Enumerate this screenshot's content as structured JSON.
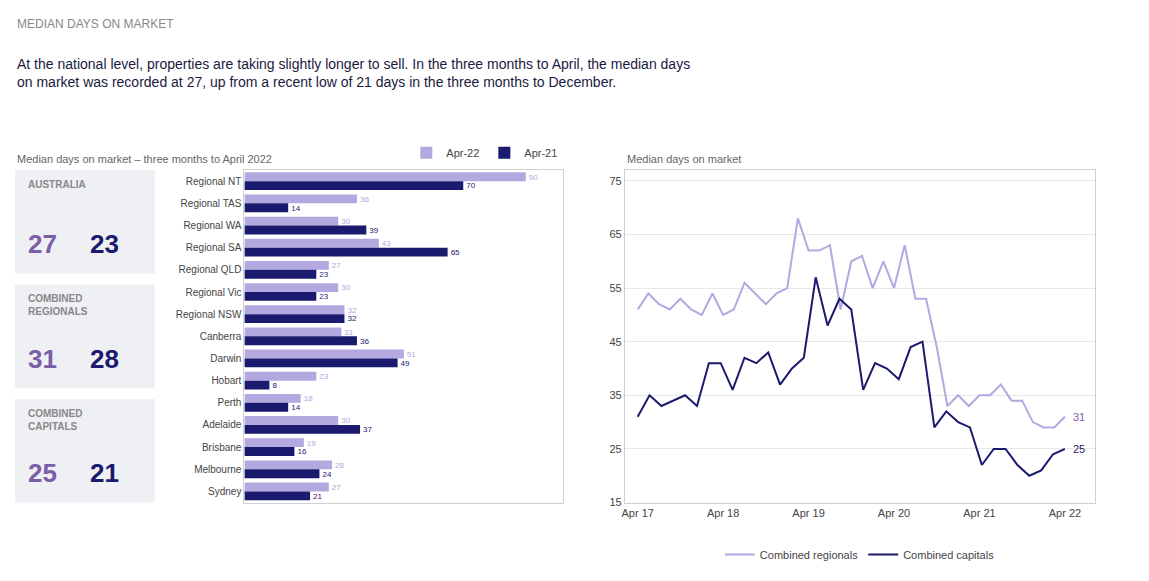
{
  "chart_data": [
    {
      "type": "kpi",
      "title": "MEDIAN DAYS ON MARKET",
      "subtitle": "At the national level, properties are taking slightly longer to sell. In the three months to April, the median days\non market was recorded at 27, up from a recent low of 21 days in the three months to December.",
      "categories": [
        "AUSTRALIA",
        "COMBINED\nREGIONALS",
        "COMBINED\nCAPITALS"
      ],
      "series": [
        {
          "color": "#7b5ea7",
          "values": [
            27,
            31,
            25
          ]
        },
        {
          "color": "#1a1a6e",
          "values": [
            23,
            28,
            21
          ]
        }
      ]
    },
    {
      "type": "bar",
      "title": "Median days on market – three months to April 2022",
      "orientation": "horizontal",
      "categories": [
        "Regional NT",
        "Regional TAS",
        "Regional WA",
        "Regional SA",
        "Regional QLD",
        "Regional Vic",
        "Regional NSW",
        "Canberra",
        "Darwin",
        "Hobart",
        "Perth",
        "Adelaide",
        "Brisbane",
        "Melbourne",
        "Sydney"
      ],
      "series": [
        {
          "name": "Apr-22",
          "color": "#b3a8e0",
          "values": [
            90,
            36,
            30,
            43,
            27,
            30,
            32,
            31,
            51,
            23,
            18,
            30,
            19,
            28,
            27
          ]
        },
        {
          "name": "Apr-21",
          "color": "#1a1a6e",
          "values": [
            70,
            14,
            39,
            65,
            23,
            23,
            32,
            36,
            49,
            8,
            14,
            37,
            16,
            24,
            21
          ]
        }
      ],
      "xlim": [
        0,
        102
      ],
      "data_labels": true,
      "tick_labels": "y",
      "grid": false,
      "legend": "upper right"
    },
    {
      "type": "line",
      "title": "Median days on market",
      "series": [
        {
          "name": "Combined regionals",
          "color": "#b3a8e0",
          "x": [
            0,
            0.125,
            0.25,
            0.375,
            0.5,
            0.625,
            0.75,
            0.875,
            1,
            1.125,
            1.25,
            1.375,
            1.5,
            1.625,
            1.75,
            1.875,
            2,
            2.125,
            2.25,
            2.375,
            2.5,
            2.625,
            2.75,
            2.875,
            3,
            3.125,
            3.25,
            3.375,
            3.5,
            3.625,
            3.75,
            3.875,
            4,
            4.125,
            4.25,
            4.375,
            4.5,
            4.625,
            4.75,
            4.875,
            5
          ],
          "values": [
            51,
            54,
            52,
            51,
            53,
            51,
            50,
            54,
            50,
            51,
            56,
            54,
            52,
            54,
            55,
            68,
            62,
            62,
            63,
            51,
            60,
            61,
            55,
            60,
            55,
            63,
            53,
            53,
            44,
            33,
            35,
            33,
            35,
            35,
            37,
            34,
            34,
            30,
            29,
            29,
            31
          ]
        },
        {
          "name": "Combined capitals",
          "color": "#1a1a6e",
          "x": [
            0,
            0.1389,
            0.2778,
            0.4167,
            0.5556,
            0.6944,
            0.8333,
            0.9722,
            1.1111,
            1.25,
            1.3889,
            1.5278,
            1.6667,
            1.8056,
            1.9444,
            2.0833,
            2.2222,
            2.3611,
            2.5,
            2.6389,
            2.7778,
            2.9167,
            3.0556,
            3.1944,
            3.3333,
            3.4722,
            3.6111,
            3.75,
            3.8889,
            4.0278,
            4.1667,
            4.3056,
            4.4444,
            4.5833,
            4.7222,
            4.8611,
            5
          ],
          "values": [
            31,
            35,
            33,
            34,
            35,
            33,
            41,
            41,
            36,
            42,
            41,
            43,
            37,
            40,
            42,
            57,
            48,
            53,
            51,
            36,
            41,
            40,
            38,
            44,
            45,
            29,
            32,
            30,
            29,
            22,
            25,
            25,
            22,
            20,
            21,
            24,
            25
          ]
        }
      ],
      "xlim": [
        -0.15,
        5.35
      ],
      "xticks": [
        {
          "value": 0,
          "label": "Apr 17"
        },
        {
          "value": 1,
          "label": "Apr 18"
        },
        {
          "value": 2,
          "label": "Apr 19"
        },
        {
          "value": 3,
          "label": "Apr 20"
        },
        {
          "value": 4,
          "label": "Apr 21"
        },
        {
          "value": 5,
          "label": "Apr 22"
        }
      ],
      "ylim": [
        15,
        77
      ],
      "yticks": [
        15,
        25,
        35,
        45,
        55,
        65,
        75
      ],
      "grid": "y",
      "legend": "lower center",
      "annotations": [
        {
          "text": "31",
          "x": 5,
          "y": 31,
          "color": "#7b5ea7"
        },
        {
          "text": "25",
          "x": 5,
          "y": 25,
          "color": "#1a1a6e"
        }
      ]
    }
  ]
}
